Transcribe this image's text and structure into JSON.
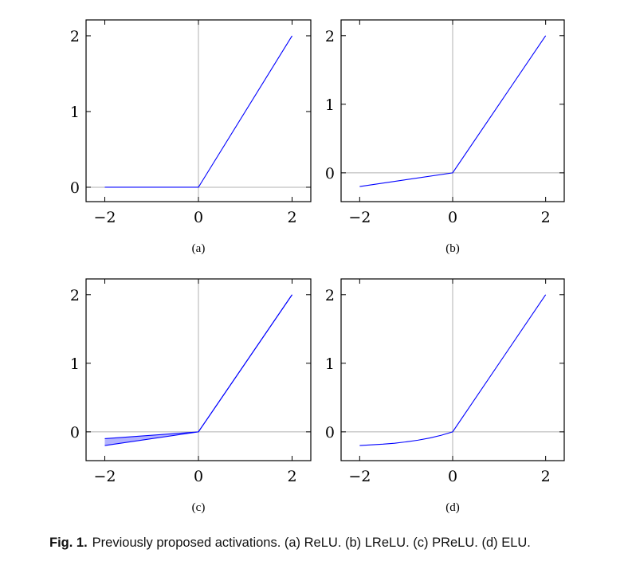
{
  "caption": {
    "label": "Fig. 1.",
    "text": "Previously proposed activations. (a) ReLU. (b) LReLU. (c) PReLU. (d) ELU."
  },
  "colors": {
    "line": "#0000ff",
    "band_fill": "#b3b3ff",
    "grid": "#b0b0b0",
    "axis": "#000000"
  },
  "chart_data": [
    {
      "type": "line",
      "sublabel": "(a)",
      "xlim": [
        -2.4,
        2.4
      ],
      "ylim": [
        -0.19,
        2.21
      ],
      "xticks": [
        -2,
        0,
        2
      ],
      "yticks": [
        0,
        1,
        2
      ],
      "grid": "zero-lines",
      "series": [
        {
          "x": [
            -2,
            0,
            2
          ],
          "y": [
            0,
            0,
            2
          ]
        }
      ]
    },
    {
      "type": "line",
      "sublabel": "(b)",
      "xlim": [
        -2.4,
        2.4
      ],
      "ylim": [
        -0.42,
        2.23
      ],
      "xticks": [
        -2,
        0,
        2
      ],
      "yticks": [
        0,
        1,
        2
      ],
      "grid": "zero-lines",
      "series": [
        {
          "x": [
            -2,
            0,
            2
          ],
          "y": [
            -0.2,
            0,
            2
          ]
        }
      ]
    },
    {
      "type": "area",
      "sublabel": "(c)",
      "xlim": [
        -2.4,
        2.4
      ],
      "ylim": [
        -0.42,
        2.23
      ],
      "xticks": [
        -2,
        0,
        2
      ],
      "yticks": [
        0,
        1,
        2
      ],
      "grid": "zero-lines",
      "series": [
        {
          "x": [
            -2,
            0,
            2
          ],
          "y": [
            -0.1,
            0,
            2
          ]
        },
        {
          "x": [
            -2,
            0,
            2
          ],
          "y": [
            -0.2,
            0,
            2
          ]
        }
      ],
      "band": {
        "x": [
          -2,
          0
        ],
        "lower": [
          -0.2,
          0
        ],
        "upper": [
          -0.1,
          0
        ]
      }
    },
    {
      "type": "line",
      "sublabel": "(d)",
      "xlim": [
        -2.4,
        2.4
      ],
      "ylim": [
        -0.42,
        2.23
      ],
      "xticks": [
        -2,
        0,
        2
      ],
      "yticks": [
        0,
        1,
        2
      ],
      "grid": "zero-lines",
      "series": [
        {
          "x": [
            -2,
            -1.75,
            -1.5,
            -1.25,
            -1,
            -0.75,
            -0.5,
            -0.25,
            0,
            2
          ],
          "y": [
            -0.2,
            -0.19,
            -0.18,
            -0.166,
            -0.146,
            -0.122,
            -0.091,
            -0.051,
            0,
            2
          ]
        }
      ]
    }
  ]
}
